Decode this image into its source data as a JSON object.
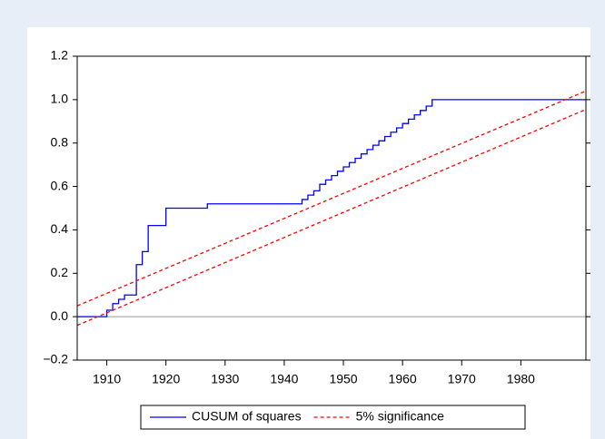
{
  "chart_data": {
    "type": "line",
    "step": "post",
    "xlim": [
      1905,
      1991
    ],
    "xticks": [
      1910,
      1920,
      1930,
      1940,
      1950,
      1960,
      1970,
      1980
    ],
    "ylim": [
      -0.2,
      1.2
    ],
    "yticks": [
      {
        "value": 1.2,
        "label": "1.2"
      },
      {
        "value": 1.0,
        "label": "1.0"
      },
      0.8,
      0.6,
      0.4,
      0.2,
      {
        "value": 0,
        "label": "0.0"
      },
      {
        "value": -0.2,
        "label": "−0.2"
      }
    ],
    "zero_line": true,
    "legend": "bottom",
    "series": [
      {
        "name": "CUSUM of squares",
        "color": "#0000ff",
        "dash": false,
        "x": [
          1905,
          1910,
          1911,
          1912,
          1913,
          1915,
          1916,
          1917,
          1920,
          1927,
          1943,
          1944,
          1945,
          1946,
          1947,
          1948,
          1949,
          1950,
          1951,
          1952,
          1953,
          1954,
          1955,
          1956,
          1957,
          1958,
          1959,
          1960,
          1961,
          1962,
          1963,
          1964,
          1965,
          1991
        ],
        "values": [
          0,
          0.03,
          0.06,
          0.08,
          0.1,
          0.24,
          0.3,
          0.42,
          0.5,
          0.52,
          0.54,
          0.56,
          0.58,
          0.61,
          0.63,
          0.65,
          0.67,
          0.69,
          0.71,
          0.73,
          0.75,
          0.77,
          0.79,
          0.81,
          0.83,
          0.85,
          0.87,
          0.89,
          0.91,
          0.93,
          0.95,
          0.97,
          1.0,
          1.0
        ]
      },
      {
        "name": "5% significance",
        "color": "#ff0000",
        "dash": true,
        "x": [
          1905,
          1991
        ],
        "values": [
          0.05,
          1.04
        ],
        "lower": [
          -0.04,
          0.955
        ]
      }
    ]
  }
}
